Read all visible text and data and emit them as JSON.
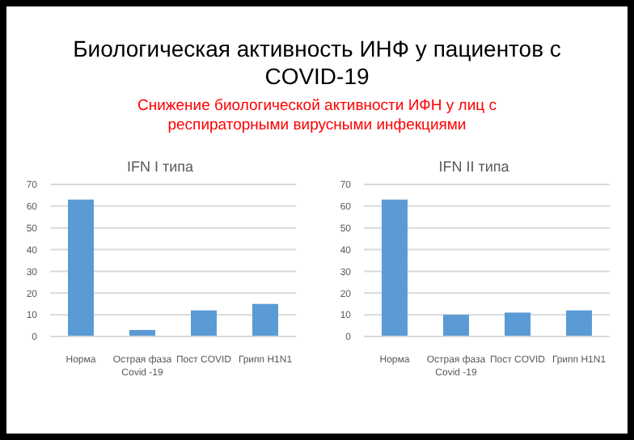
{
  "chart_data": [
    {
      "type": "other",
      "title": "Биологическая активность ИНФ у пациентов с COVID-19",
      "subtitle": "Снижение биологической активности ИФН у лиц с респираторными вирусными инфекциями"
    },
    {
      "type": "bar",
      "title": "IFN I типа",
      "categories": [
        "Норма",
        "Острая фаза Covid -19",
        "Пост COVID",
        "Грипп H1N1"
      ],
      "values": [
        63,
        3,
        12,
        15
      ],
      "color": "#5b9bd5",
      "ylim": [
        0,
        70
      ],
      "yticks": [
        0,
        10,
        20,
        30,
        40,
        50,
        60,
        70
      ],
      "grid": "y"
    },
    {
      "type": "bar",
      "title": "IFN II типа",
      "categories": [
        "Норма",
        "Острая фаза Covid -19",
        "Пост COVID",
        "Грипп H1N1"
      ],
      "values": [
        63,
        10,
        11,
        12
      ],
      "color": "#5b9bd5",
      "ylim": [
        0,
        70
      ],
      "yticks": [
        0,
        10,
        20,
        30,
        40,
        50,
        60,
        70
      ],
      "grid": "y"
    }
  ]
}
